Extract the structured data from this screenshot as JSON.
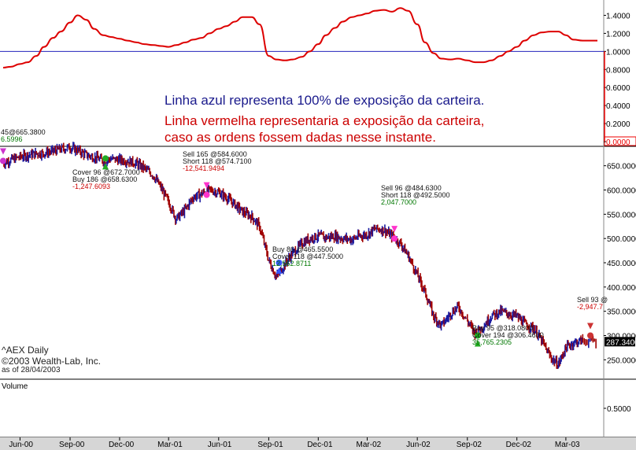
{
  "chart_data": [
    {
      "type": "line",
      "panel": "exposure",
      "ylim": [
        0.0,
        1.5
      ],
      "y_ticks": [
        "1.4000",
        "1.2000",
        "1.0000",
        "0.8000",
        "0.6000",
        "0.4000",
        "0.2000",
        "0.0000"
      ],
      "reference_line": 1.0,
      "series": [
        {
          "x": [
            "2000-05-01",
            "2000-05-15",
            "2000-06-01",
            "2000-06-15",
            "2000-07-01",
            "2000-07-15",
            "2000-08-01",
            "2000-08-15",
            "2000-09-01",
            "2000-09-15",
            "2000-10-01",
            "2000-10-15",
            "2000-11-01",
            "2000-11-15",
            "2000-12-01",
            "2000-12-15",
            "2001-01-01",
            "2001-01-15",
            "2001-02-01",
            "2001-02-15",
            "2001-03-01",
            "2001-03-15",
            "2001-04-01",
            "2001-04-15",
            "2001-05-01",
            "2001-05-15",
            "2001-06-01",
            "2001-06-15",
            "2001-07-01",
            "2001-07-15",
            "2001-08-01",
            "2001-08-15",
            "2001-09-01",
            "2001-09-15",
            "2001-10-01",
            "2001-10-15",
            "2001-11-01",
            "2001-11-15",
            "2001-12-01",
            "2001-12-15",
            "2002-01-01",
            "2002-01-15",
            "2002-02-01",
            "2002-02-15",
            "2002-03-01",
            "2002-03-15",
            "2002-04-01",
            "2002-04-15",
            "2002-05-01",
            "2002-05-15",
            "2002-06-01",
            "2002-06-15",
            "2002-07-01",
            "2002-07-15",
            "2002-08-01",
            "2002-08-15",
            "2002-09-01",
            "2002-09-15",
            "2002-10-01",
            "2002-10-15",
            "2002-11-01",
            "2002-11-15",
            "2002-12-01",
            "2002-12-15",
            "2003-01-01",
            "2003-01-15",
            "2003-02-01",
            "2003-02-15",
            "2003-03-01",
            "2003-03-15",
            "2003-04-01",
            "2003-04-28"
          ],
          "y": [
            0.82,
            0.83,
            0.86,
            0.88,
            0.95,
            1.05,
            1.15,
            1.22,
            1.32,
            1.4,
            1.35,
            1.25,
            1.18,
            1.16,
            1.14,
            1.12,
            1.1,
            1.08,
            1.07,
            1.06,
            1.05,
            1.07,
            1.1,
            1.13,
            1.15,
            1.2,
            1.25,
            1.28,
            1.33,
            1.38,
            1.38,
            1.3,
            0.95,
            0.91,
            0.9,
            0.91,
            0.94,
            1.0,
            1.08,
            1.18,
            1.26,
            1.33,
            1.38,
            1.4,
            1.42,
            1.45,
            1.46,
            1.44,
            1.48,
            1.45,
            1.3,
            1.1,
            0.98,
            0.92,
            0.91,
            0.92,
            0.9,
            0.88,
            0.88,
            0.9,
            0.95,
            1.0,
            1.05,
            1.12,
            1.18,
            1.21,
            1.22,
            1.22,
            1.18,
            1.13,
            1.12,
            1.12
          ]
        }
      ]
    },
    {
      "type": "line",
      "panel": "price",
      "ylim": [
        210,
        690
      ],
      "y_ticks": [
        "650.0000",
        "600.0000",
        "550.0000",
        "500.0000",
        "450.0000",
        "400.0000",
        "350.0000",
        "300.0000",
        "250.0000"
      ],
      "last_value_label": "287.3400",
      "series": [
        {
          "name": "AEX Daily",
          "x": [
            "2000-05-01",
            "2000-05-15",
            "2000-06-01",
            "2000-06-15",
            "2000-07-01",
            "2000-07-15",
            "2000-08-01",
            "2000-08-15",
            "2000-09-01",
            "2000-09-15",
            "2000-10-01",
            "2000-10-15",
            "2000-11-01",
            "2000-11-15",
            "2000-12-01",
            "2000-12-15",
            "2001-01-01",
            "2001-01-15",
            "2001-02-01",
            "2001-02-15",
            "2001-03-01",
            "2001-03-15",
            "2001-04-01",
            "2001-04-15",
            "2001-05-01",
            "2001-05-15",
            "2001-06-01",
            "2001-06-15",
            "2001-07-01",
            "2001-07-15",
            "2001-08-01",
            "2001-08-15",
            "2001-09-01",
            "2001-09-15",
            "2001-10-01",
            "2001-10-15",
            "2001-11-01",
            "2001-11-15",
            "2001-12-01",
            "2001-12-15",
            "2002-01-01",
            "2002-01-15",
            "2002-02-01",
            "2002-02-15",
            "2002-03-01",
            "2002-03-15",
            "2002-04-01",
            "2002-04-15",
            "2002-05-01",
            "2002-05-15",
            "2002-06-01",
            "2002-06-15",
            "2002-07-01",
            "2002-07-15",
            "2002-08-01",
            "2002-08-15",
            "2002-09-01",
            "2002-09-15",
            "2002-10-01",
            "2002-10-15",
            "2002-11-01",
            "2002-11-15",
            "2002-12-01",
            "2002-12-15",
            "2003-01-01",
            "2003-01-15",
            "2003-02-01",
            "2003-02-15",
            "2003-03-01",
            "2003-03-15",
            "2003-04-01",
            "2003-04-28"
          ],
          "y": [
            655,
            662,
            668,
            672,
            675,
            676,
            680,
            684,
            688,
            682,
            672,
            668,
            660,
            664,
            662,
            660,
            655,
            645,
            630,
            605,
            575,
            540,
            560,
            585,
            592,
            600,
            595,
            585,
            570,
            555,
            545,
            525,
            455,
            420,
            448,
            470,
            490,
            500,
            505,
            502,
            505,
            500,
            498,
            505,
            508,
            520,
            518,
            505,
            490,
            465,
            425,
            390,
            340,
            320,
            345,
            360,
            330,
            305,
            320,
            340,
            350,
            345,
            340,
            325,
            315,
            290,
            255,
            240,
            275,
            285,
            290,
            287
          ]
        }
      ]
    }
  ],
  "exposure_panel": {
    "y_ticks": [
      "1.4000",
      "1.2000",
      "1.0000",
      "0.8000",
      "0.6000",
      "0.4000",
      "0.2000",
      "0.0000"
    ],
    "highlight_tick": "0.0000"
  },
  "price_panel": {
    "y_ticks": [
      "650.0000",
      "600.0000",
      "550.0000",
      "500.0000",
      "450.0000",
      "400.0000",
      "350.0000",
      "300.0000",
      "250.0000"
    ],
    "last_value": "287.3400"
  },
  "volume_panel": {
    "label": "Volume",
    "y_ticks": [
      "0.5000"
    ]
  },
  "x_axis": {
    "ticks": [
      "Jun-00",
      "Sep-00",
      "Dec-00",
      "Mar-01",
      "Jun-01",
      "Sep-01",
      "Dec-01",
      "Mar-02",
      "Jun-02",
      "Sep-02",
      "Dec-02",
      "Mar-03"
    ]
  },
  "notes": {
    "blue": "Linha azul representa 100% de exposição da carteira.",
    "red_line1": "Linha vermelha representaria a exposição da carteira,",
    "red_line2": "caso as ordens fossem dadas nesse instante."
  },
  "symbol": {
    "name": "^AEX Daily",
    "copyright": "©2003 Wealth-Lab, Inc.",
    "as_of": "as of 28/04/2003"
  },
  "trades": [
    {
      "line1": "45@665.3800",
      "line2": "",
      "pl": "6.5996",
      "pl_color": "#007700"
    },
    {
      "line1": "Cover 96 @672.7000",
      "line2": "Buy 186 @658.6300",
      "pl": "-1,247.6093",
      "pl_color": "#cc0000"
    },
    {
      "line1": "Sell 165 @584.6000",
      "line2": "Short 118 @574.7100",
      "pl": "-12,541.9494",
      "pl_color": "#cc0000"
    },
    {
      "line1": "Buy 86 @465.5500",
      "line2": "Cover 118 @447.5000",
      "pl": "12,562.8711",
      "pl_color": "#007700"
    },
    {
      "line1": "Sell 96 @484.6300",
      "line2": "Short 118 @492.5000",
      "pl": "2,047.7000",
      "pl_color": "#007700"
    },
    {
      "line1": "Buy 95 @318.0800",
      "line2": "Cover 194 @306.4600",
      "pl": "35,765.2305",
      "pl_color": "#007700"
    },
    {
      "line1": "Sell 93 @",
      "line2": "",
      "pl": "-2,947.7",
      "pl_color": "#cc0000"
    }
  ],
  "colors": {
    "exposure_line": "#dd0000",
    "reference_line": "#2222bb",
    "price_up": "#1a1aa0",
    "price_down": "#a00000",
    "axis_highlight": "#ee0000"
  }
}
